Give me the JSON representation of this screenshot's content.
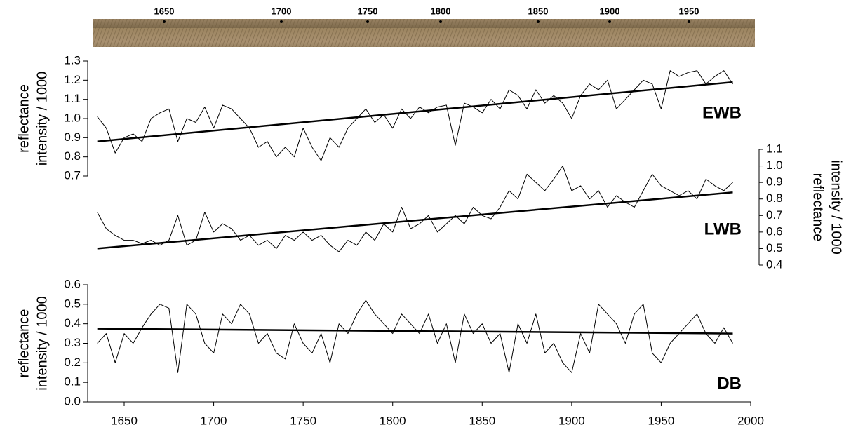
{
  "core_image": {
    "markers": [
      "1650",
      "1700",
      "1750",
      "1800",
      "1850",
      "1900",
      "1950"
    ]
  },
  "chart_data": [
    {
      "type": "line",
      "label": "EWB",
      "ylabel": [
        "reflectance",
        "intensity / 1000"
      ],
      "axis_side": "left",
      "xlim": [
        1630,
        2000
      ],
      "ylim": [
        0.7,
        1.3
      ],
      "yticks": [
        0.7,
        0.8,
        0.9,
        {
          "value": 1,
          "label": "1.0"
        },
        1.1,
        1.2,
        1.3
      ],
      "x": [
        1635,
        1640,
        1645,
        1650,
        1655,
        1660,
        1665,
        1670,
        1675,
        1680,
        1685,
        1690,
        1695,
        1700,
        1705,
        1710,
        1715,
        1720,
        1725,
        1730,
        1735,
        1740,
        1745,
        1750,
        1755,
        1760,
        1765,
        1770,
        1775,
        1780,
        1785,
        1790,
        1795,
        1800,
        1805,
        1810,
        1815,
        1820,
        1825,
        1830,
        1835,
        1840,
        1845,
        1850,
        1855,
        1860,
        1865,
        1870,
        1875,
        1880,
        1885,
        1890,
        1895,
        1900,
        1905,
        1910,
        1915,
        1920,
        1925,
        1930,
        1935,
        1940,
        1945,
        1950,
        1955,
        1960,
        1965,
        1970,
        1975,
        1980,
        1985,
        1990
      ],
      "series": [
        {
          "color": "#000000",
          "width": 1,
          "values": [
            1.01,
            0.95,
            0.82,
            0.9,
            0.92,
            0.88,
            1.0,
            1.03,
            1.05,
            0.88,
            1.0,
            0.98,
            1.06,
            0.95,
            1.07,
            1.05,
            1.0,
            0.95,
            0.85,
            0.88,
            0.8,
            0.85,
            0.8,
            0.95,
            0.85,
            0.78,
            0.9,
            0.85,
            0.95,
            1.0,
            1.05,
            0.98,
            1.02,
            0.95,
            1.05,
            1.0,
            1.06,
            1.03,
            1.06,
            1.07,
            0.86,
            1.08,
            1.06,
            1.03,
            1.1,
            1.05,
            1.15,
            1.12,
            1.05,
            1.15,
            1.08,
            1.12,
            1.08,
            1.0,
            1.12,
            1.18,
            1.15,
            1.2,
            1.05,
            1.1,
            1.15,
            1.2,
            1.18,
            1.05,
            1.25,
            1.22,
            1.24,
            1.25,
            1.18,
            1.22,
            1.25,
            1.18
          ]
        },
        {
          "color": "#000000",
          "width": 2.5,
          "x": [
            1635,
            1990
          ],
          "values": [
            0.88,
            1.19
          ]
        }
      ]
    },
    {
      "type": "line",
      "label": "LWB",
      "ylabel": [
        "reflectance",
        "intensity / 1000"
      ],
      "axis_side": "right",
      "xlim": [
        1630,
        2000
      ],
      "ylim": [
        0.4,
        1.1
      ],
      "yticks": [
        0.4,
        0.5,
        0.6,
        0.7,
        0.8,
        0.9,
        {
          "value": 1,
          "label": "1.0"
        },
        1.1
      ],
      "x": [
        1635,
        1640,
        1645,
        1650,
        1655,
        1660,
        1665,
        1670,
        1675,
        1680,
        1685,
        1690,
        1695,
        1700,
        1705,
        1710,
        1715,
        1720,
        1725,
        1730,
        1735,
        1740,
        1745,
        1750,
        1755,
        1760,
        1765,
        1770,
        1775,
        1780,
        1785,
        1790,
        1795,
        1800,
        1805,
        1810,
        1815,
        1820,
        1825,
        1830,
        1835,
        1840,
        1845,
        1850,
        1855,
        1860,
        1865,
        1870,
        1875,
        1880,
        1885,
        1890,
        1895,
        1900,
        1905,
        1910,
        1915,
        1920,
        1925,
        1930,
        1935,
        1940,
        1945,
        1950,
        1955,
        1960,
        1965,
        1970,
        1975,
        1980,
        1985,
        1990
      ],
      "series": [
        {
          "color": "#000000",
          "width": 1,
          "values": [
            0.72,
            0.62,
            0.58,
            0.55,
            0.55,
            0.53,
            0.55,
            0.52,
            0.55,
            0.7,
            0.52,
            0.55,
            0.72,
            0.6,
            0.65,
            0.62,
            0.55,
            0.58,
            0.52,
            0.55,
            0.5,
            0.58,
            0.55,
            0.6,
            0.55,
            0.58,
            0.52,
            0.48,
            0.55,
            0.52,
            0.6,
            0.55,
            0.65,
            0.6,
            0.75,
            0.62,
            0.65,
            0.7,
            0.6,
            0.65,
            0.7,
            0.65,
            0.75,
            0.7,
            0.68,
            0.75,
            0.85,
            0.8,
            0.95,
            0.9,
            0.85,
            0.92,
            1.0,
            0.85,
            0.88,
            0.8,
            0.85,
            0.75,
            0.82,
            0.78,
            0.75,
            0.85,
            0.95,
            0.88,
            0.85,
            0.82,
            0.85,
            0.8,
            0.92,
            0.88,
            0.85,
            0.9
          ]
        },
        {
          "color": "#000000",
          "width": 2.5,
          "x": [
            1635,
            1990
          ],
          "values": [
            0.5,
            0.84
          ]
        }
      ]
    },
    {
      "type": "line",
      "label": "DB",
      "ylabel": [
        "reflectance",
        "intensity / 1000"
      ],
      "axis_side": "left",
      "xlim": [
        1630,
        2000
      ],
      "ylim": [
        0,
        0.6
      ],
      "yticks": [
        {
          "value": 0,
          "label": "0.0"
        },
        0.1,
        0.2,
        0.3,
        0.4,
        0.5,
        0.6
      ],
      "xticks": [
        1650,
        1700,
        1750,
        1800,
        1850,
        1900,
        1950,
        2000
      ],
      "x": [
        1635,
        1640,
        1645,
        1650,
        1655,
        1660,
        1665,
        1670,
        1675,
        1680,
        1685,
        1690,
        1695,
        1700,
        1705,
        1710,
        1715,
        1720,
        1725,
        1730,
        1735,
        1740,
        1745,
        1750,
        1755,
        1760,
        1765,
        1770,
        1775,
        1780,
        1785,
        1790,
        1795,
        1800,
        1805,
        1810,
        1815,
        1820,
        1825,
        1830,
        1835,
        1840,
        1845,
        1850,
        1855,
        1860,
        1865,
        1870,
        1875,
        1880,
        1885,
        1890,
        1895,
        1900,
        1905,
        1910,
        1915,
        1920,
        1925,
        1930,
        1935,
        1940,
        1945,
        1950,
        1955,
        1960,
        1965,
        1970,
        1975,
        1980,
        1985,
        1990
      ],
      "series": [
        {
          "color": "#000000",
          "width": 1,
          "values": [
            0.3,
            0.35,
            0.2,
            0.35,
            0.3,
            0.38,
            0.45,
            0.5,
            0.48,
            0.15,
            0.5,
            0.45,
            0.3,
            0.25,
            0.45,
            0.4,
            0.5,
            0.45,
            0.3,
            0.35,
            0.25,
            0.22,
            0.4,
            0.3,
            0.25,
            0.35,
            0.2,
            0.4,
            0.35,
            0.45,
            0.52,
            0.45,
            0.4,
            0.35,
            0.45,
            0.4,
            0.35,
            0.45,
            0.3,
            0.4,
            0.2,
            0.45,
            0.35,
            0.4,
            0.3,
            0.35,
            0.15,
            0.4,
            0.3,
            0.45,
            0.25,
            0.3,
            0.2,
            0.15,
            0.35,
            0.25,
            0.5,
            0.45,
            0.4,
            0.3,
            0.45,
            0.5,
            0.25,
            0.2,
            0.3,
            0.35,
            0.4,
            0.45,
            0.35,
            0.3,
            0.38,
            0.3
          ]
        },
        {
          "color": "#000000",
          "width": 2.5,
          "x": [
            1635,
            1990
          ],
          "values": [
            0.375,
            0.35
          ]
        }
      ]
    }
  ]
}
